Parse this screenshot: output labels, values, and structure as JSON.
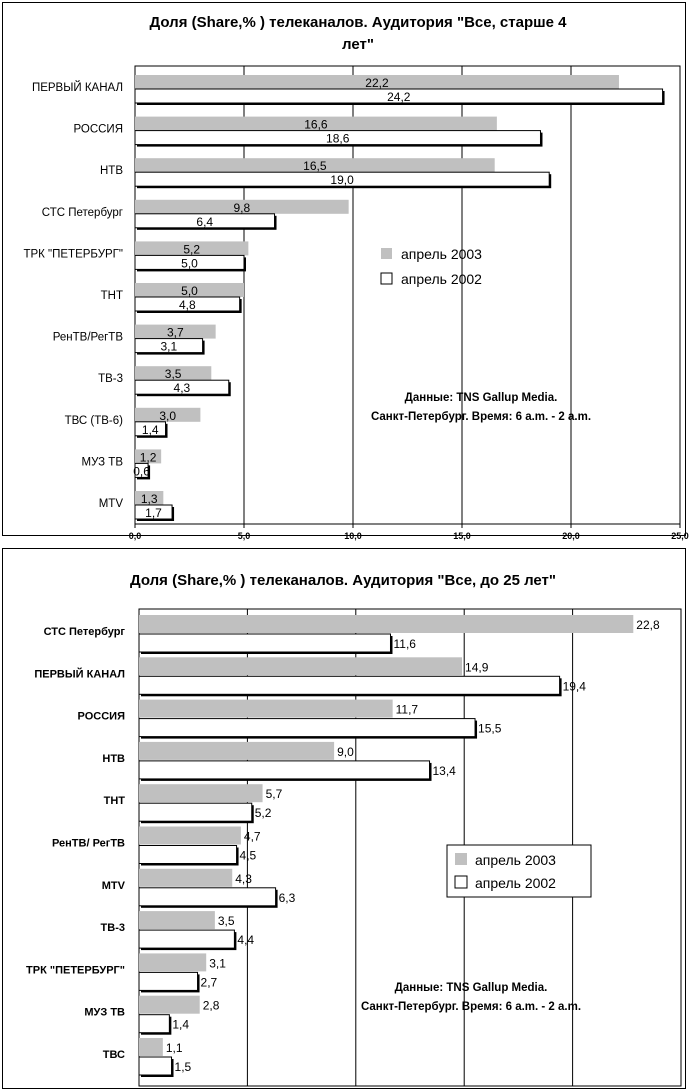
{
  "chart_data": [
    {
      "type": "bar",
      "orientation": "horizontal",
      "title": "Доля (Share,% ) телеканалов. Аудитория \"Все, старше 4 лет\"",
      "title_lines": [
        "Доля (Share,% ) телеканалов. Аудитория \"Все, старше 4",
        "лет\""
      ],
      "categories": [
        "ПЕРВЫЙ КАНАЛ",
        "РОССИЯ",
        "НТВ",
        "СТС Петербург",
        "ТРК \"ПЕТЕРБУРГ\"",
        "ТНТ",
        "РенТВ/РегТВ",
        "ТВ-3",
        "ТВС (ТВ-6)",
        "МУЗ ТВ",
        "MTV"
      ],
      "series": [
        {
          "name": "апрель 2003",
          "values": [
            22.2,
            16.6,
            16.5,
            9.8,
            5.2,
            5.0,
            3.7,
            3.5,
            3.0,
            1.2,
            1.3
          ],
          "labels": [
            "22,2",
            "16,6",
            "16,5",
            "9,8",
            "5,2",
            "5,0",
            "3,7",
            "3,5",
            "3,0",
            "1,2",
            "1,3"
          ],
          "color": "#c0c0c0"
        },
        {
          "name": "апрель 2002",
          "values": [
            24.2,
            18.6,
            19.0,
            6.4,
            5.0,
            4.8,
            3.1,
            4.3,
            1.4,
            0.6,
            1.7
          ],
          "labels": [
            "24,2",
            "18,6",
            "19,0",
            "6,4",
            "5,0",
            "4,8",
            "3,1",
            "4,3",
            "1,4",
            "0,6",
            "1,7"
          ],
          "color": "#ffffff"
        }
      ],
      "xlim": [
        0,
        25
      ],
      "xticks": [
        "0,0",
        "5,0",
        "10,0",
        "15,0",
        "20,0",
        "25,0"
      ],
      "grid": true,
      "legend_position": "center-right",
      "annotation": [
        "Данные: TNS  Gallup Media.",
        "Санкт-Петербург. Время: 6 a.m. - 2 a.m."
      ]
    },
    {
      "type": "bar",
      "orientation": "horizontal",
      "title": "Доля (Share,% ) телеканалов. Аудитория \"Все, до 25 лет\"",
      "title_lines": [
        "Доля (Share,% ) телеканалов. Аудитория \"Все, до 25 лет\""
      ],
      "categories": [
        "СТС Петербург",
        "ПЕРВЫЙ КАНАЛ",
        "РОССИЯ",
        "НТВ",
        "ТНТ",
        "РенТВ/ РегТВ",
        "MTV",
        "ТВ-3",
        "ТРК \"ПЕТЕРБУРГ\"",
        "МУЗ ТВ",
        "ТВС"
      ],
      "series": [
        {
          "name": "апрель 2003",
          "values": [
            22.8,
            14.9,
            11.7,
            9.0,
            5.7,
            4.7,
            4.3,
            3.5,
            3.1,
            2.8,
            1.1
          ],
          "labels": [
            "22,8",
            "14,9",
            "11,7",
            "9,0",
            "5,7",
            "4,7",
            "4,3",
            "3,5",
            "3,1",
            "2,8",
            "1,1"
          ],
          "color": "#c0c0c0"
        },
        {
          "name": "апрель 2002",
          "values": [
            11.6,
            19.4,
            15.5,
            13.4,
            5.2,
            4.5,
            6.3,
            4.4,
            2.7,
            1.4,
            1.5
          ],
          "labels": [
            "11,6",
            "19,4",
            "15,5",
            "13,4",
            "5,2",
            "4,5",
            "6,3",
            "4,4",
            "2,7",
            "1,4",
            "1,5"
          ],
          "color": "#ffffff"
        }
      ],
      "xlim": [
        0,
        25
      ],
      "grid": true,
      "legend_position": "center-right",
      "annotation": [
        "Данные: TNS  Gallup Media.",
        "Санкт-Петербург. Время: 6 a.m. - 2 a.m."
      ]
    }
  ]
}
